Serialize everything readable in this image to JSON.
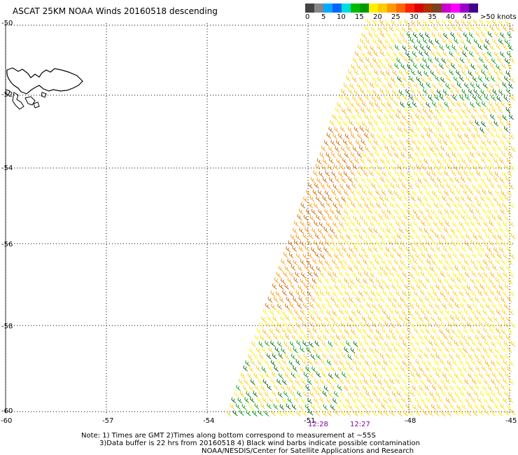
{
  "title": "ASCAT 25KM NOAA Winds 20160518 descending",
  "scale": {
    "colors": [
      "#444444",
      "#888888",
      "#00aaff",
      "#0066ff",
      "#00dddd",
      "#00bb00",
      "#009900",
      "#ffee00",
      "#ffcc00",
      "#ff9900",
      "#ff6600",
      "#ff2200",
      "#dd0000",
      "#aa3300",
      "#774422",
      "#cc00cc",
      "#ff00ff",
      "#9900cc",
      "#440088"
    ],
    "labels": [
      "0",
      "5",
      "10",
      "15",
      "20",
      "25",
      "30",
      "35",
      "40",
      "45",
      ">50 knots"
    ]
  },
  "map": {
    "lat_labels": [
      "-50",
      "-52",
      "-54",
      "-56",
      "-58",
      "-60"
    ],
    "lon_labels": [
      "-60",
      "-57",
      "-54",
      "-51",
      "-48",
      "-45"
    ],
    "times": [
      "12:28",
      "12:27"
    ],
    "time_color": "#8800aa",
    "band_colors": [
      "#ffee00",
      "#ffcc00",
      "#ffdd33",
      "#ff9900",
      "#cc6600",
      "#009900",
      "#006600",
      "#ffaa00"
    ]
  },
  "notes": {
    "line1": "Note: 1) Times are GMT 2)Times along bottom correspond to measurement at ~55S",
    "line2": "3)Data buffer is 22 hrs from 20160518 4) Black wind barbs indicate possible contamination",
    "line3": "NOAA/NESDIS/Center for Satellite Applications and Research"
  }
}
